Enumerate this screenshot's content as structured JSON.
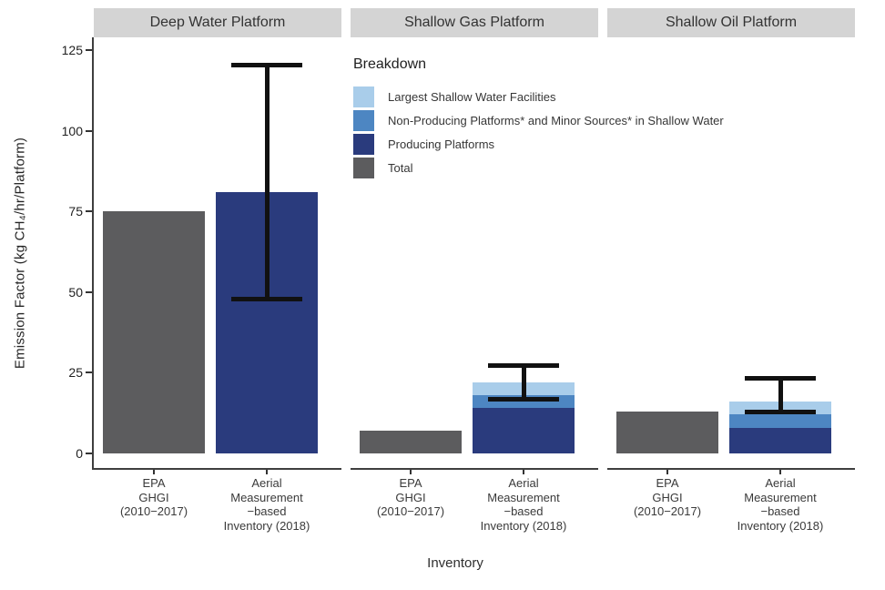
{
  "chart_data": {
    "type": "bar",
    "title": "",
    "xlabel": "Inventory",
    "ylabel": "Emission Factor (kg CH₄/hr/Platform)",
    "ylim": [
      0,
      125
    ],
    "yticks": [
      0,
      25,
      50,
      75,
      100,
      125
    ],
    "grid": "off",
    "facet_layout": "three panels side by side, shared y axis",
    "x_categories": [
      "EPA GHGI (2010−2017)",
      "Aerial Measurement-based Inventory (2018)"
    ],
    "x_category_lines": [
      [
        "EPA",
        "GHGI",
        "(2010−2017)"
      ],
      [
        "Aerial",
        "Measurement",
        "−based",
        "Inventory (2018)"
      ]
    ],
    "legend": {
      "title": "Breakdown",
      "position": "inside plot, top-left of middle panel",
      "entries": [
        {
          "label": "Largest Shallow Water Facilities",
          "color": "#a9cdea"
        },
        {
          "label": "Non-Producing Platforms* and Minor Sources* in Shallow Water",
          "color": "#4d86c2"
        },
        {
          "label": "Producing Platforms",
          "color": "#2a3b7d"
        },
        {
          "label": "Total",
          "color": "#5c5c5e"
        }
      ]
    },
    "facets": [
      {
        "title": "Deep Water Platform",
        "bars": [
          {
            "category": "EPA GHGI (2010−2017)",
            "total": 75,
            "segments": [
              {
                "name": "Total",
                "color": "#5c5c5e",
                "value": 75
              }
            ]
          },
          {
            "category": "Aerial Measurement-based Inventory (2018)",
            "total": 81,
            "segments": [
              {
                "name": "Producing Platforms",
                "color": "#2a3b7d",
                "value": 81
              }
            ],
            "error_bar": {
              "low": 47,
              "high": 121
            }
          }
        ]
      },
      {
        "title": "Shallow Gas Platform",
        "bars": [
          {
            "category": "EPA GHGI (2010−2017)",
            "total": 7,
            "segments": [
              {
                "name": "Total",
                "color": "#5c5c5e",
                "value": 7
              }
            ]
          },
          {
            "category": "Aerial Measurement-based Inventory (2018)",
            "total": 22,
            "segments": [
              {
                "name": "Producing Platforms",
                "color": "#2a3b7d",
                "value": 14
              },
              {
                "name": "Non-Producing Platforms* and Minor Sources* in Shallow Water",
                "color": "#4d86c2",
                "value": 4
              },
              {
                "name": "Largest Shallow Water Facilities",
                "color": "#a9cdea",
                "value": 4
              }
            ],
            "error_bar": {
              "low": 16,
              "high": 28
            }
          }
        ]
      },
      {
        "title": "Shallow Oil Platform",
        "bars": [
          {
            "category": "EPA GHGI (2010−2017)",
            "total": 13,
            "segments": [
              {
                "name": "Total",
                "color": "#5c5c5e",
                "value": 13
              }
            ]
          },
          {
            "category": "Aerial Measurement-based Inventory (2018)",
            "total": 16,
            "segments": [
              {
                "name": "Producing Platforms",
                "color": "#2a3b7d",
                "value": 8
              },
              {
                "name": "Non-Producing Platforms* and Minor Sources* in Shallow Water",
                "color": "#4d86c2",
                "value": 4
              },
              {
                "name": "Largest Shallow Water Facilities",
                "color": "#a9cdea",
                "value": 4
              }
            ],
            "error_bar": {
              "low": 12,
              "high": 24
            }
          }
        ]
      }
    ],
    "style_colors": {
      "strip_background": "#d4d4d4",
      "axis_line": "#3f3f3f",
      "error_bar": "#111111",
      "text": "#333333",
      "background": "#ffffff"
    }
  }
}
